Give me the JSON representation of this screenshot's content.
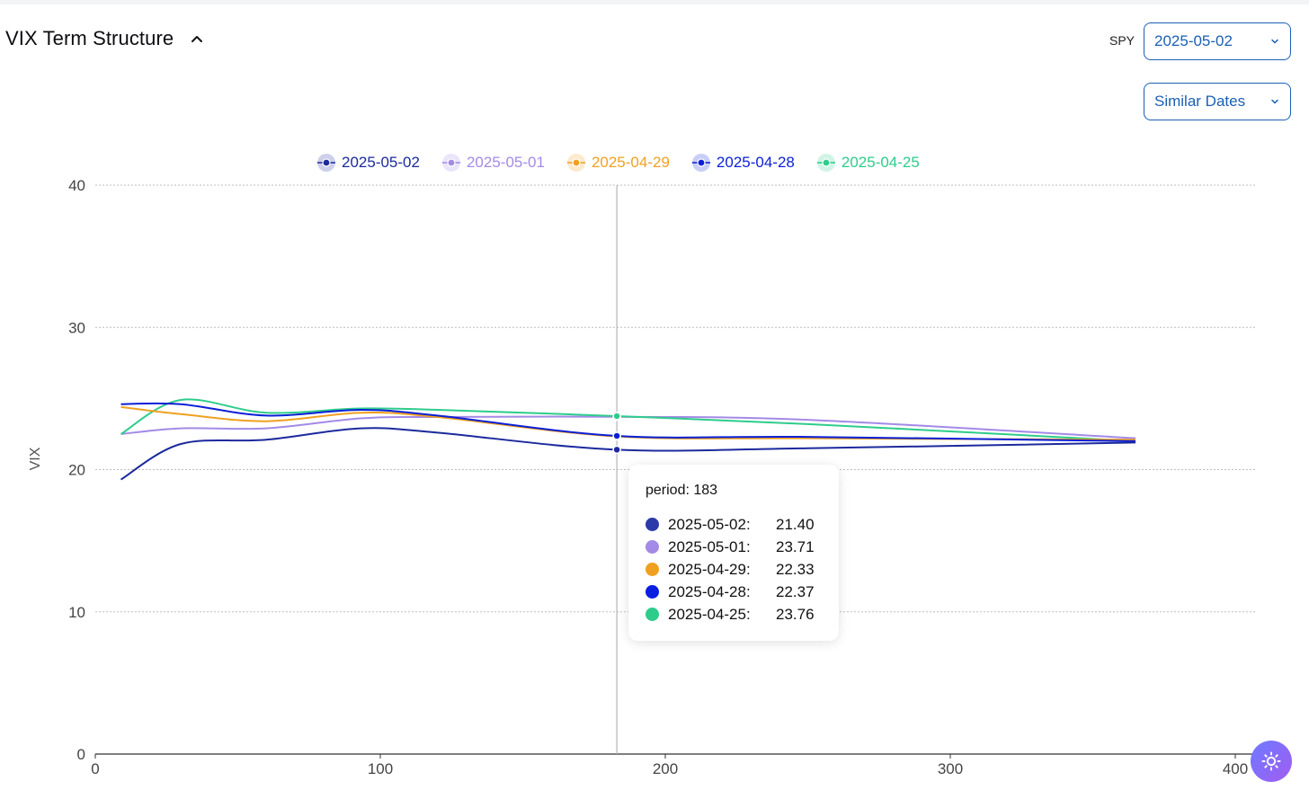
{
  "header": {
    "title": "VIX Term Structure",
    "spy_label": "SPY"
  },
  "controls": {
    "date_select": "2025-05-02",
    "similar_select": "Similar Dates"
  },
  "icons": {
    "collapse": "chevron-up-icon",
    "dropdown": "chevron-down-icon",
    "theme": "sun-icon"
  },
  "tooltip": {
    "title": "period: 183",
    "rows": [
      {
        "label": "2025-05-02:",
        "value": "21.40",
        "color": "#2b3aa8"
      },
      {
        "label": "2025-05-01:",
        "value": "23.71",
        "color": "#a38ae6"
      },
      {
        "label": "2025-04-29:",
        "value": "22.33",
        "color": "#f0a020"
      },
      {
        "label": "2025-04-28:",
        "value": "22.37",
        "color": "#0a1fe0"
      },
      {
        "label": "2025-04-25:",
        "value": "23.76",
        "color": "#2ecc8b"
      }
    ]
  },
  "chart_data": {
    "type": "line",
    "ylabel": "VIX",
    "xlabel": "",
    "xlim": [
      0,
      400
    ],
    "ylim": [
      0,
      40
    ],
    "xticks": [
      0,
      100,
      200,
      300,
      400
    ],
    "yticks": [
      0,
      10,
      20,
      30,
      40
    ],
    "grid": true,
    "legend_position": "top",
    "hover_x": 183,
    "series": [
      {
        "name": "2025-05-02",
        "color": "#1c2a9c",
        "x": [
          9,
          30,
          60,
          93,
          120,
          183,
          250,
          365
        ],
        "y": [
          19.3,
          21.8,
          22.1,
          22.9,
          22.6,
          21.4,
          21.5,
          21.9
        ]
      },
      {
        "name": "2025-05-01",
        "color": "#a38ae6",
        "x": [
          9,
          30,
          60,
          93,
          120,
          183,
          250,
          365
        ],
        "y": [
          22.5,
          22.9,
          22.9,
          23.6,
          23.7,
          23.71,
          23.5,
          22.2
        ]
      },
      {
        "name": "2025-04-29",
        "color": "#f0a020",
        "x": [
          9,
          30,
          60,
          93,
          120,
          183,
          250,
          365
        ],
        "y": [
          24.4,
          23.9,
          23.4,
          24.0,
          23.7,
          22.33,
          22.2,
          22.1
        ]
      },
      {
        "name": "2025-04-28",
        "color": "#0a1fd6",
        "x": [
          9,
          30,
          60,
          93,
          120,
          183,
          250,
          365
        ],
        "y": [
          24.6,
          24.6,
          23.8,
          24.2,
          23.8,
          22.37,
          22.3,
          22.0
        ]
      },
      {
        "name": "2025-04-25",
        "color": "#2ecc8b",
        "x": [
          9,
          30,
          60,
          93,
          120,
          183,
          250,
          365
        ],
        "y": [
          22.5,
          24.9,
          24.0,
          24.3,
          24.2,
          23.76,
          23.2,
          22.0
        ]
      }
    ]
  }
}
